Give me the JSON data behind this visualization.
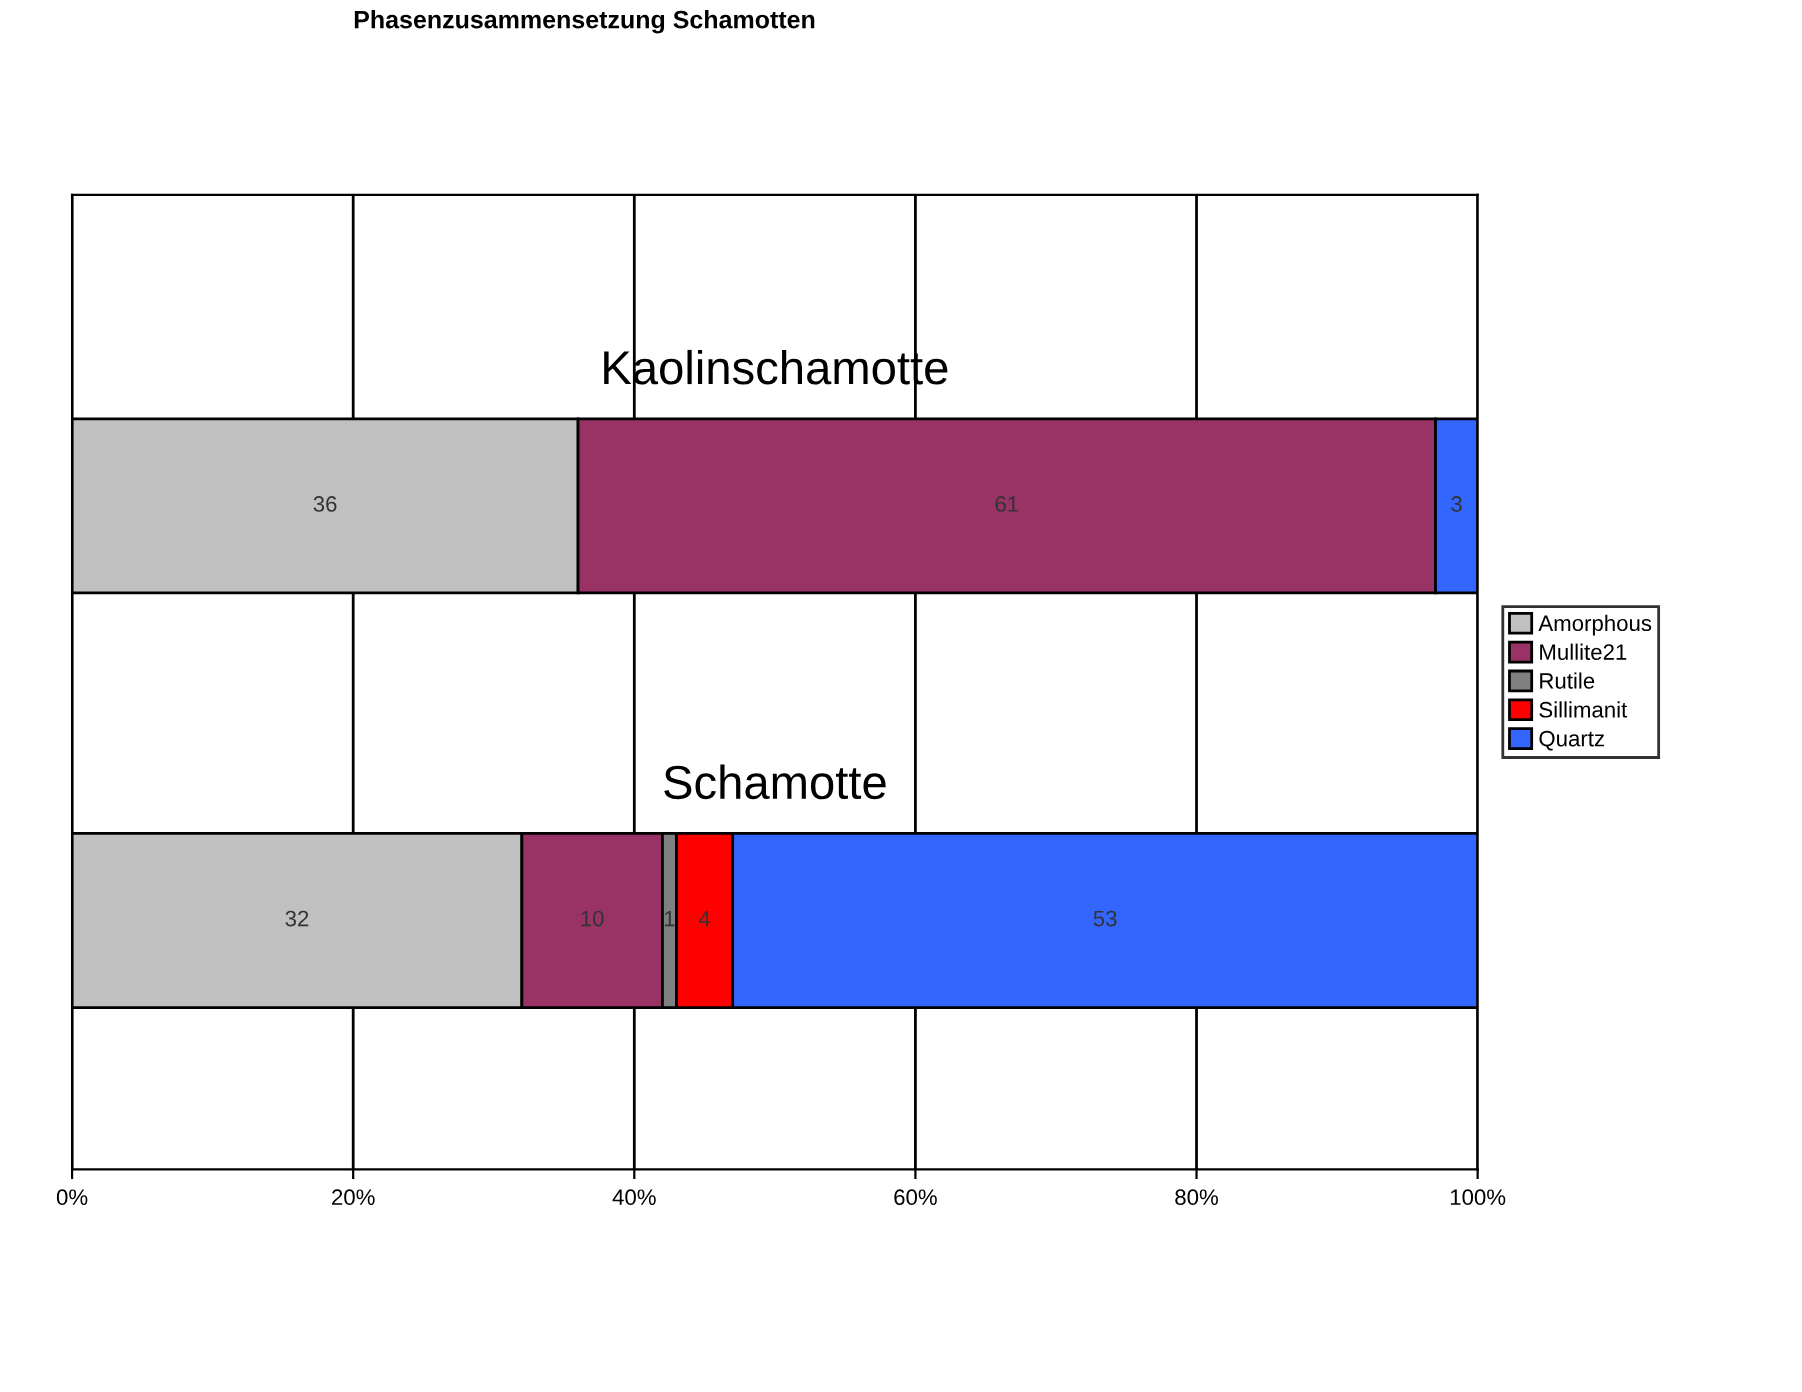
{
  "chart_data": {
    "type": "bar",
    "orientation": "horizontal",
    "stacked": true,
    "title": "Phasenzusammensetzung Schamotten",
    "categories": [
      "Kaolinschamotte",
      "Schamotte"
    ],
    "series": [
      {
        "name": "Amorphous",
        "color": "#c0c0c0",
        "values": [
          36,
          32
        ],
        "value_labels": [
          "36",
          "32"
        ]
      },
      {
        "name": "Mullite21",
        "color": "#993366",
        "values": [
          61,
          10
        ],
        "value_labels": [
          "61",
          "10"
        ]
      },
      {
        "name": "Rutile",
        "color": "#808080",
        "values": [
          0,
          1
        ],
        "value_labels": [
          null,
          "1"
        ]
      },
      {
        "name": "Sillimanit",
        "color": "#ff0000",
        "values": [
          0,
          4
        ],
        "value_labels": [
          null,
          "4"
        ]
      },
      {
        "name": "Quartz",
        "color": "#3366ff",
        "values": [
          3,
          53
        ],
        "value_labels": [
          "3",
          "53"
        ]
      }
    ],
    "xlim": [
      0,
      100
    ],
    "xticks": [
      {
        "value": 0,
        "label": "0%"
      },
      {
        "value": 20,
        "label": "20%"
      },
      {
        "value": 40,
        "label": "40%"
      },
      {
        "value": 60,
        "label": "60%"
      },
      {
        "value": 80,
        "label": "80%"
      },
      {
        "value": 100,
        "label": "100%"
      }
    ],
    "grid": "x",
    "legend": "right"
  }
}
